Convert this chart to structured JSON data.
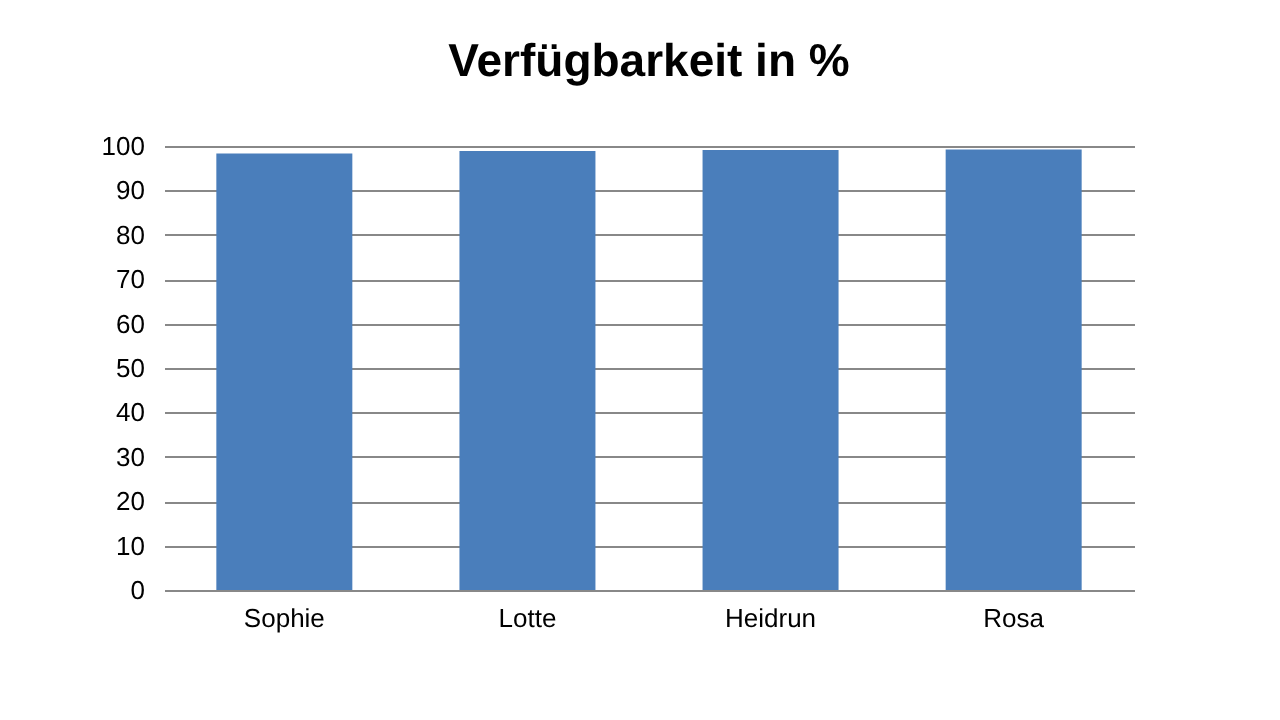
{
  "chart_data": {
    "type": "bar",
    "title": "Verfügbarkeit in %",
    "categories": [
      "Sophie",
      "Lotte",
      "Heidrun",
      "Rosa"
    ],
    "values": [
      98.3,
      98.9,
      99.1,
      99.2
    ],
    "color": "#4a7ebb",
    "ylim": [
      0,
      100
    ],
    "yticks": [
      0,
      10,
      20,
      30,
      40,
      50,
      60,
      70,
      80,
      90,
      100
    ],
    "grid": "y"
  }
}
